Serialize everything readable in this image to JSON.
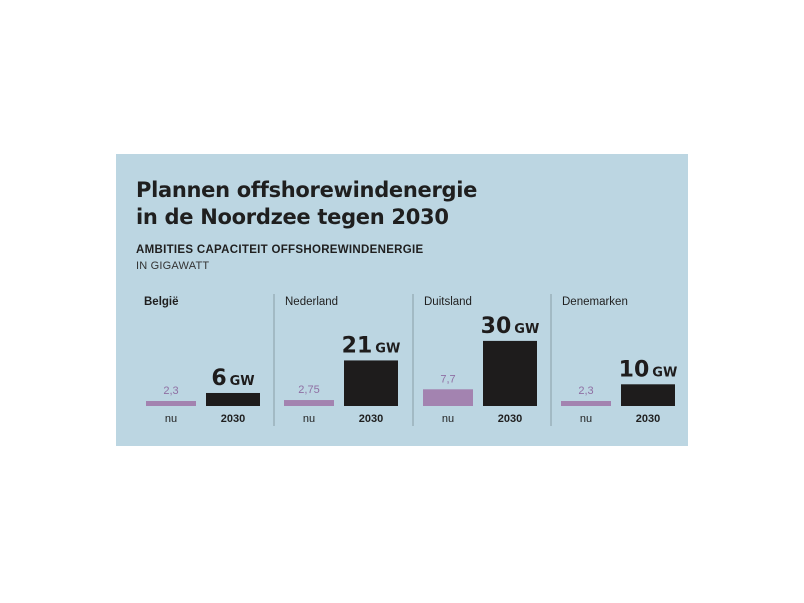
{
  "title_line1": "Plannen offshorewindenergie",
  "title_line2": "in de Noordzee tegen 2030",
  "subtitle": "AMBITIES CAPACITEIT OFFSHOREWINDENERGIE",
  "unit_label": "IN GIGAWATT",
  "colors": {
    "background": "#bcd6e2",
    "nu": "#a383b0",
    "target_2030": "#1e1c1c",
    "nu_label": "#8f6fa3",
    "divider": "#7d8f99"
  },
  "chart_data": {
    "type": "bar",
    "categories": [
      "nu",
      "2030"
    ],
    "unit": "GW",
    "groups": [
      {
        "name": "België",
        "values": [
          2.3,
          6
        ],
        "labels": [
          "2,3",
          "6"
        ]
      },
      {
        "name": "Nederland",
        "values": [
          2.75,
          21
        ],
        "labels": [
          "2,75",
          "21"
        ]
      },
      {
        "name": "Duitsland",
        "values": [
          7.7,
          30
        ],
        "labels": [
          "7,7",
          "30"
        ]
      },
      {
        "name": "Denemarken",
        "values": [
          2.3,
          10
        ],
        "labels": [
          "2,3",
          "10"
        ]
      }
    ]
  }
}
